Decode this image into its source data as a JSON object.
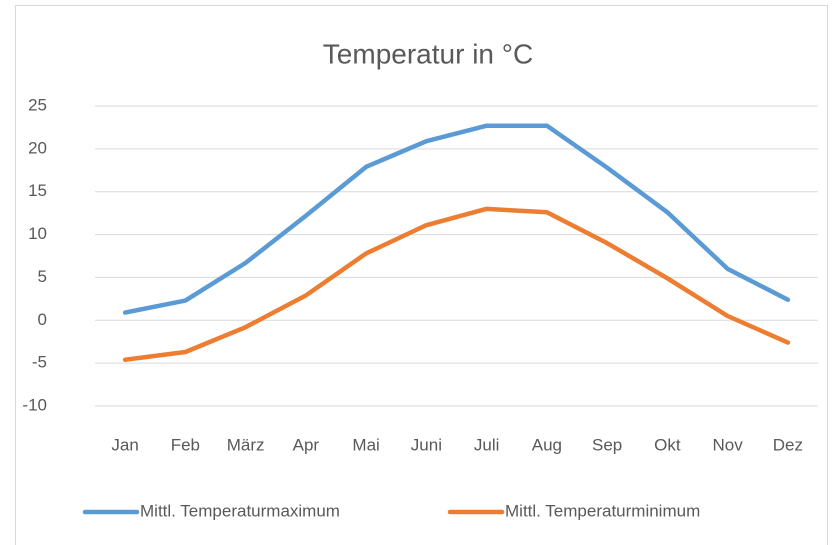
{
  "chart_data": {
    "type": "line",
    "title": "Temperatur in °C",
    "categories": [
      "Jan",
      "Feb",
      "März",
      "Apr",
      "Mai",
      "Juni",
      "Juli",
      "Aug",
      "Sep",
      "Okt",
      "Nov",
      "Dez"
    ],
    "series": [
      {
        "name": "Mittl. Temperaturmaximum",
        "color": "#5b9bd5",
        "values": [
          0.9,
          2.3,
          6.7,
          12.2,
          17.9,
          20.9,
          22.7,
          22.7,
          17.8,
          12.6,
          6.0,
          2.4
        ]
      },
      {
        "name": "Mittl. Temperaturminimum",
        "color": "#ed7d31",
        "values": [
          -4.6,
          -3.7,
          -0.8,
          2.9,
          7.8,
          11.1,
          13.0,
          12.6,
          9.0,
          4.9,
          0.5,
          -2.6
        ]
      }
    ],
    "ylim": [
      -10,
      25
    ],
    "yticks": [
      -10,
      -5,
      0,
      5,
      10,
      15,
      20,
      25
    ],
    "grid": true,
    "legend": "bottom"
  }
}
